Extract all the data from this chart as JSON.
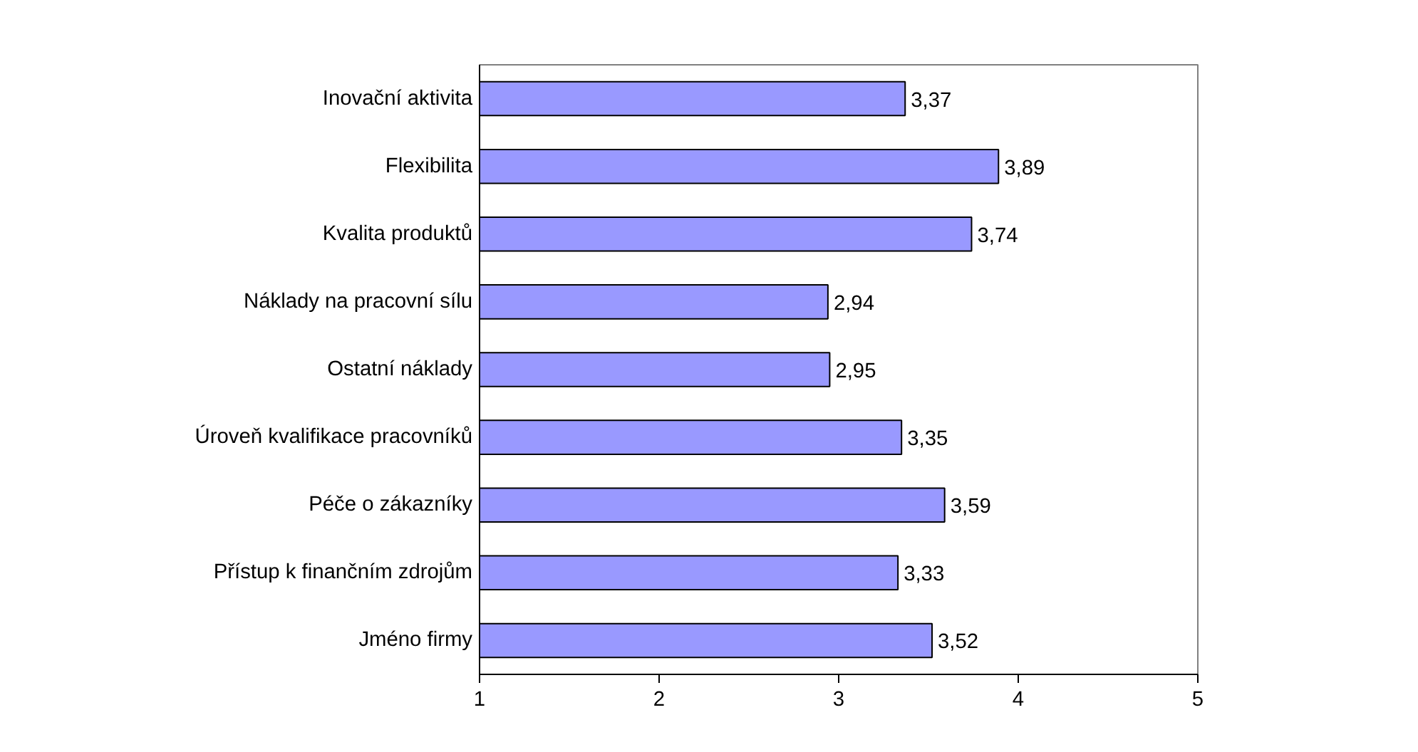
{
  "chart_data": {
    "type": "bar",
    "orientation": "horizontal",
    "categories": [
      "Inovační aktivita",
      "Flexibilita",
      "Kvalita produktů",
      "Náklady na pracovní sílu",
      "Ostatní náklady",
      "Úroveň kvalifikace pracovníků",
      "Péče o zákazníky",
      "Přístup k finančním zdrojům",
      "Jméno firmy"
    ],
    "values": [
      3.37,
      3.89,
      3.74,
      2.94,
      2.95,
      3.35,
      3.59,
      3.33,
      3.52
    ],
    "value_labels": [
      "3,37",
      "3,89",
      "3,74",
      "2,94",
      "2,95",
      "3,35",
      "3,59",
      "3,33",
      "3,52"
    ],
    "color": "#9999ff",
    "xlim": [
      1,
      5
    ],
    "xticks": [
      1,
      2,
      3,
      4,
      5
    ],
    "grid": false
  }
}
